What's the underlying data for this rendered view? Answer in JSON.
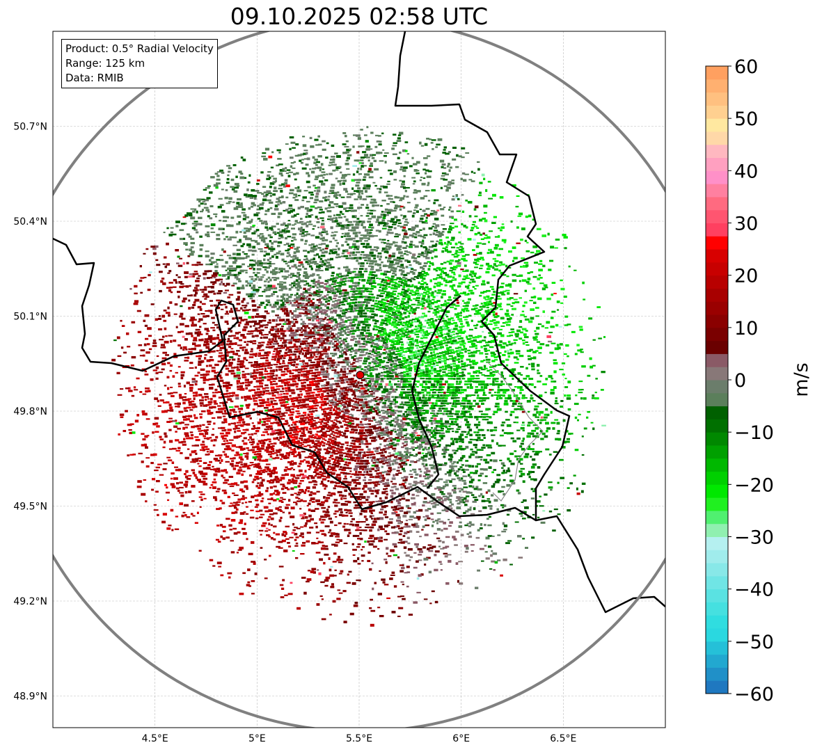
{
  "title": "09.10.2025 02:58 UTC",
  "legend": {
    "product": "Product: 0.5° Radial Velocity",
    "range": "Range: 125 km",
    "data": "Data: RMIB"
  },
  "map": {
    "lon_range": [
      4.0,
      7.0
    ],
    "lat_range": [
      48.8,
      51.0
    ],
    "lon_ticks": [
      4.5,
      5.0,
      5.5,
      6.0,
      6.5
    ],
    "lon_tick_labels": [
      "4.5°E",
      "5°E",
      "5.5°E",
      "6°E",
      "6.5°E"
    ],
    "lat_ticks": [
      50.7,
      50.4,
      50.1,
      49.8,
      49.5,
      49.2,
      48.9
    ],
    "lat_tick_labels": [
      "50.7°N",
      "50.4°N",
      "50.1°N",
      "49.8°N",
      "49.5°N",
      "49.2°N",
      "48.9°N"
    ],
    "radar_site": {
      "lon": 5.505,
      "lat": 49.914,
      "color": "#e00000"
    },
    "range_km": 125,
    "range_ring_color": "#808080",
    "border_color": "#000000"
  },
  "colorbar": {
    "label": "m/s",
    "vmin": -60,
    "vmax": 60,
    "ticks": [
      -60,
      -50,
      -40,
      -30,
      -20,
      -10,
      0,
      10,
      20,
      30,
      40,
      50,
      60
    ],
    "tick_labels": [
      "−60",
      "−50",
      "−40",
      "−30",
      "−20",
      "−10",
      "0",
      "10",
      "20",
      "30",
      "40",
      "50",
      "60"
    ],
    "colors": [
      "#1f78c0",
      "#2090c8",
      "#22a8d0",
      "#25c0d8",
      "#2ad8e0",
      "#30dde0",
      "#45e0e0",
      "#5ae2e2",
      "#70e5e5",
      "#88e8e8",
      "#a0ecec",
      "#b5f0f0",
      "#90f0b0",
      "#50f070",
      "#20f020",
      "#00e800",
      "#00d000",
      "#00b800",
      "#00a000",
      "#008800",
      "#007000",
      "#006000",
      "#5b7f5b",
      "#6b7d6b",
      "#887878",
      "#8a5a66",
      "#6a0000",
      "#7a0000",
      "#8a0000",
      "#9a0000",
      "#a80000",
      "#b80000",
      "#c80000",
      "#d80000",
      "#ff0000",
      "#ff4060",
      "#ff5570",
      "#ff6a80",
      "#ff80a0",
      "#ff90c8",
      "#ffa0c0",
      "#ffb8c0",
      "#ffd8a8",
      "#ffe8a0",
      "#ffd090",
      "#ffc080",
      "#ffb070",
      "#ffa060"
    ]
  }
}
